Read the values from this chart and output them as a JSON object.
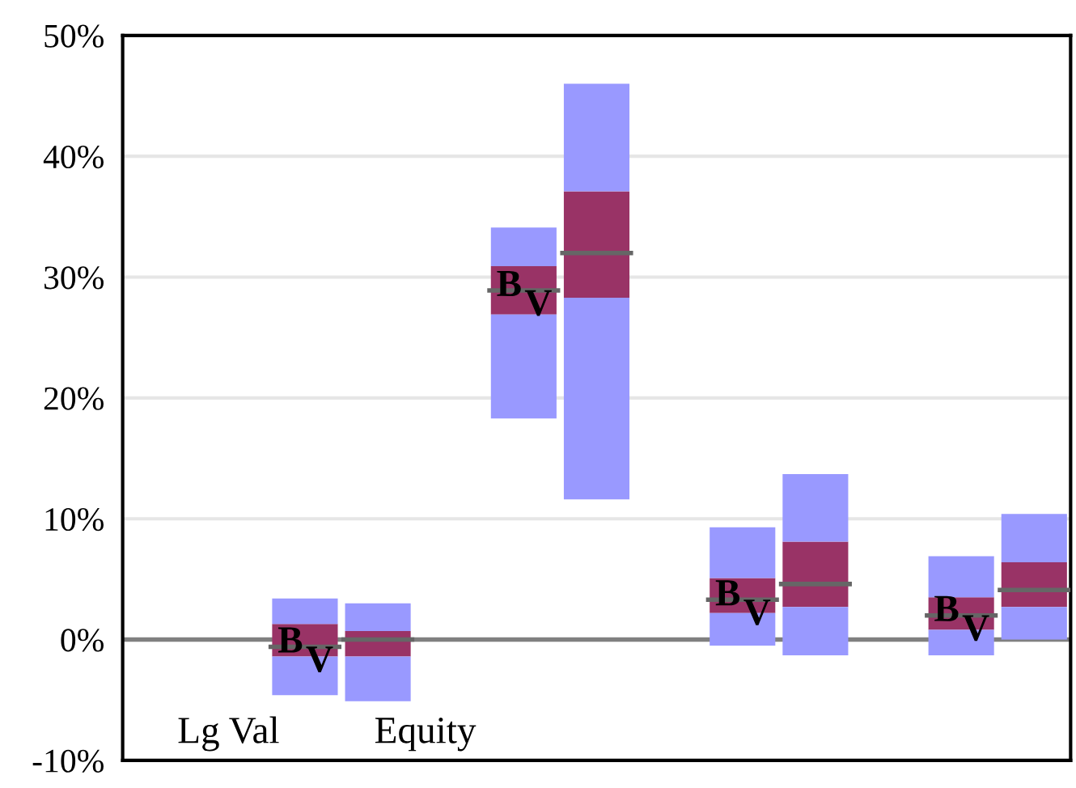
{
  "chart_data": {
    "type": "box",
    "categories": [
      null,
      null,
      null,
      null,
      null,
      null,
      null,
      null,
      null,
      null,
      null,
      null,
      null
    ],
    "series": [
      {
        "color": "#9999ff",
        "colors": [
          "#993366",
          "#993366",
          "#993366",
          "#993366",
          "#993366",
          "#993366",
          "#993366",
          "#993366",
          "#993366",
          "#993366",
          "#993366",
          "#993366",
          "#993366"
        ],
        "boxes": [
          null,
          null,
          {
            "low": -4.6,
            "q1": -1.4,
            "median": -0.6,
            "q3": 1.3,
            "high": 3.4
          },
          {
            "low": -5.1,
            "q1": -1.4,
            "median": 0,
            "q3": 0.7,
            "high": 3.0
          },
          null,
          {
            "low": 18.3,
            "q1": 26.9,
            "median": 28.9,
            "q3": 30.9,
            "high": 34.1
          },
          {
            "low": 11.6,
            "q1": 28.3,
            "median": 32.0,
            "q3": 37.1,
            "high": 46.0
          },
          null,
          {
            "low": -0.5,
            "q1": 2.2,
            "median": 3.3,
            "q3": 5.1,
            "high": 9.3
          },
          {
            "low": -1.3,
            "q1": 2.7,
            "median": 4.6,
            "q3": 8.1,
            "high": 13.7
          },
          null,
          {
            "low": -1.3,
            "q1": 0.8,
            "median": 2.0,
            "q3": 3.5,
            "high": 6.9
          },
          {
            "low": 0,
            "q1": 2.7,
            "median": 4.1,
            "q3": 6.4,
            "high": 10.4
          }
        ]
      }
    ],
    "ylim": [
      -10,
      50
    ],
    "yticks": [
      {
        "value": -10,
        "label": "-10%"
      },
      {
        "value": 0,
        "label": "0%"
      },
      {
        "value": 10,
        "label": "10%"
      },
      {
        "value": 20,
        "label": "20%"
      },
      {
        "value": 30,
        "label": "30%"
      },
      {
        "value": 40,
        "label": "40%"
      },
      {
        "value": 50,
        "label": "50%"
      }
    ],
    "grid": "y",
    "ref_lines": [
      {
        "axis": "y",
        "value": 0,
        "color": "#808080"
      }
    ],
    "annotations": [
      "Lg Val",
      "Equity",
      "B",
      "V",
      "B",
      "V",
      "B",
      "V",
      "B",
      "V"
    ],
    "tick_labels": "y"
  }
}
